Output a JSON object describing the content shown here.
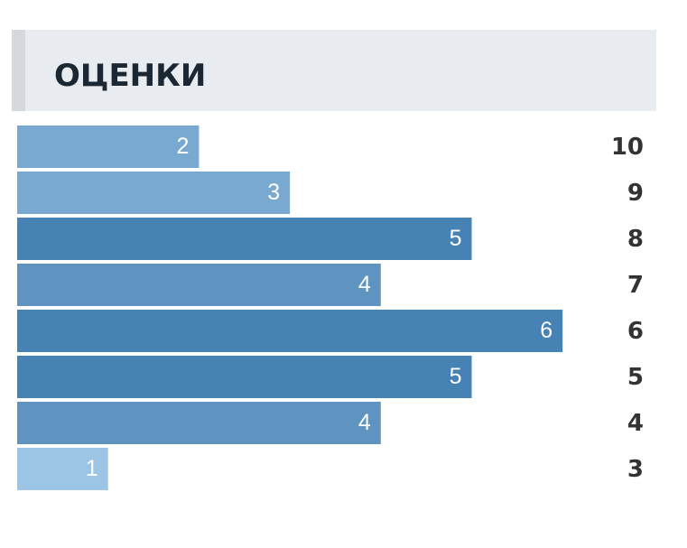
{
  "chart_data": {
    "type": "bar",
    "orientation": "horizontal",
    "title": "ОЦЕНКИ",
    "categories": [
      "10",
      "9",
      "8",
      "7",
      "6",
      "5",
      "4",
      "3"
    ],
    "values": [
      2,
      3,
      5,
      4,
      6,
      5,
      4,
      1
    ],
    "colors": [
      "#79a9d1",
      "#79a9d1",
      "#4682b4",
      "#5f94c0",
      "#4682b4",
      "#4682b4",
      "#5f94c0",
      "#9cc4e5"
    ]
  }
}
